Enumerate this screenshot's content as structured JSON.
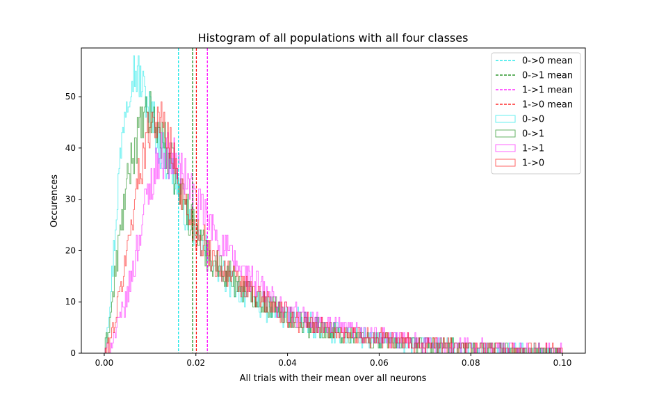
{
  "chart_data": {
    "type": "histogram",
    "title": "Histogram of all populations with all four classes",
    "xlabel": "All trials with their mean over all neurons",
    "ylabel": "Occurences",
    "xlim": [
      -0.005,
      0.105
    ],
    "ylim": [
      0,
      59.5
    ],
    "x_ticks": [
      0.0,
      0.02,
      0.04,
      0.06,
      0.08,
      0.1
    ],
    "x_tick_labels": [
      "0.00",
      "0.02",
      "0.04",
      "0.06",
      "0.08",
      "0.10"
    ],
    "y_ticks": [
      0,
      10,
      20,
      30,
      40,
      50
    ],
    "y_tick_labels": [
      "0",
      "10",
      "20",
      "30",
      "40",
      "50"
    ],
    "bin_range": [
      0.0,
      0.1
    ],
    "bins": 500,
    "legend_position": "upper right",
    "grid": false,
    "means": [
      {
        "label": "0->0 mean",
        "x": 0.0162,
        "color": "#00e5e5"
      },
      {
        "label": "0->1 mean",
        "x": 0.0193,
        "color": "#008000"
      },
      {
        "label": "1->1 mean",
        "x": 0.0225,
        "color": "#ff00ff"
      },
      {
        "label": "1->0 mean",
        "x": 0.0201,
        "color": "#ff0000"
      }
    ],
    "series": [
      {
        "name": "0->0",
        "color": "#00e5e5",
        "profile": [
          [
            0.0,
            0
          ],
          [
            0.0015,
            12
          ],
          [
            0.003,
            32
          ],
          [
            0.0045,
            48
          ],
          [
            0.006,
            55
          ],
          [
            0.0075,
            54
          ],
          [
            0.009,
            50
          ],
          [
            0.0105,
            46
          ],
          [
            0.012,
            41
          ],
          [
            0.0135,
            38
          ],
          [
            0.015,
            35
          ],
          [
            0.0165,
            32
          ],
          [
            0.018,
            27
          ],
          [
            0.02,
            23
          ],
          [
            0.022,
            20
          ],
          [
            0.025,
            16
          ],
          [
            0.03,
            12
          ],
          [
            0.035,
            9
          ],
          [
            0.04,
            7
          ],
          [
            0.05,
            4
          ],
          [
            0.06,
            2.5
          ],
          [
            0.07,
            1.5
          ],
          [
            0.08,
            1
          ],
          [
            0.09,
            0.6
          ],
          [
            0.1,
            0.3
          ]
        ]
      },
      {
        "name": "0->1",
        "color": "#008000",
        "profile": [
          [
            0.0,
            0
          ],
          [
            0.0015,
            8
          ],
          [
            0.003,
            20
          ],
          [
            0.0045,
            30
          ],
          [
            0.006,
            38
          ],
          [
            0.0075,
            43
          ],
          [
            0.009,
            46
          ],
          [
            0.0105,
            46
          ],
          [
            0.012,
            43
          ],
          [
            0.0135,
            40
          ],
          [
            0.015,
            36
          ],
          [
            0.0165,
            32
          ],
          [
            0.018,
            28
          ],
          [
            0.02,
            24
          ],
          [
            0.022,
            20
          ],
          [
            0.025,
            17
          ],
          [
            0.03,
            13
          ],
          [
            0.035,
            10
          ],
          [
            0.04,
            7
          ],
          [
            0.05,
            4
          ],
          [
            0.06,
            2.5
          ],
          [
            0.07,
            1.5
          ],
          [
            0.08,
            1
          ],
          [
            0.09,
            0.6
          ],
          [
            0.1,
            0.3
          ]
        ]
      },
      {
        "name": "1->1",
        "color": "#ff00ff",
        "profile": [
          [
            0.0,
            0
          ],
          [
            0.0015,
            2
          ],
          [
            0.003,
            5
          ],
          [
            0.0045,
            9
          ],
          [
            0.006,
            15
          ],
          [
            0.0075,
            22
          ],
          [
            0.009,
            29
          ],
          [
            0.0105,
            34
          ],
          [
            0.012,
            38
          ],
          [
            0.0135,
            39
          ],
          [
            0.015,
            38
          ],
          [
            0.0165,
            36
          ],
          [
            0.018,
            34
          ],
          [
            0.02,
            30
          ],
          [
            0.022,
            27
          ],
          [
            0.025,
            22
          ],
          [
            0.03,
            16
          ],
          [
            0.035,
            12
          ],
          [
            0.04,
            8
          ],
          [
            0.05,
            5
          ],
          [
            0.06,
            3
          ],
          [
            0.07,
            2
          ],
          [
            0.08,
            1.2
          ],
          [
            0.09,
            0.7
          ],
          [
            0.1,
            0.4
          ]
        ]
      },
      {
        "name": "1->0",
        "color": "#ff0000",
        "profile": [
          [
            0.0,
            0
          ],
          [
            0.0015,
            3
          ],
          [
            0.003,
            9
          ],
          [
            0.0045,
            17
          ],
          [
            0.006,
            26
          ],
          [
            0.0075,
            34
          ],
          [
            0.009,
            41
          ],
          [
            0.0105,
            46
          ],
          [
            0.012,
            46
          ],
          [
            0.0135,
            43
          ],
          [
            0.015,
            38
          ],
          [
            0.0165,
            33
          ],
          [
            0.018,
            28
          ],
          [
            0.02,
            24
          ],
          [
            0.022,
            21
          ],
          [
            0.025,
            17
          ],
          [
            0.03,
            13
          ],
          [
            0.035,
            10
          ],
          [
            0.04,
            7
          ],
          [
            0.05,
            4.5
          ],
          [
            0.06,
            2.8
          ],
          [
            0.07,
            1.7
          ],
          [
            0.08,
            1.1
          ],
          [
            0.09,
            0.6
          ],
          [
            0.1,
            0.3
          ]
        ]
      }
    ]
  }
}
